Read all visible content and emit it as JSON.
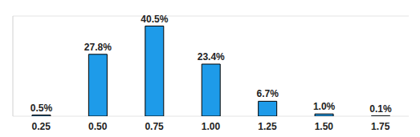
{
  "chart_data": {
    "type": "bar",
    "categories": [
      "0.25",
      "0.50",
      "0.75",
      "1.00",
      "1.25",
      "1.50",
      "1.75"
    ],
    "values": [
      0.5,
      27.8,
      40.5,
      23.4,
      6.7,
      1.0,
      0.1
    ],
    "value_labels": [
      "0.5%",
      "27.8%",
      "40.5%",
      "23.4%",
      "6.7%",
      "1.0%",
      "0.1%"
    ],
    "data_labels": true,
    "color": "#1e9be9",
    "ylim": [
      0,
      45
    ],
    "yticks": [
      0,
      20,
      40
    ],
    "grid": true,
    "tick_labels": "x"
  }
}
